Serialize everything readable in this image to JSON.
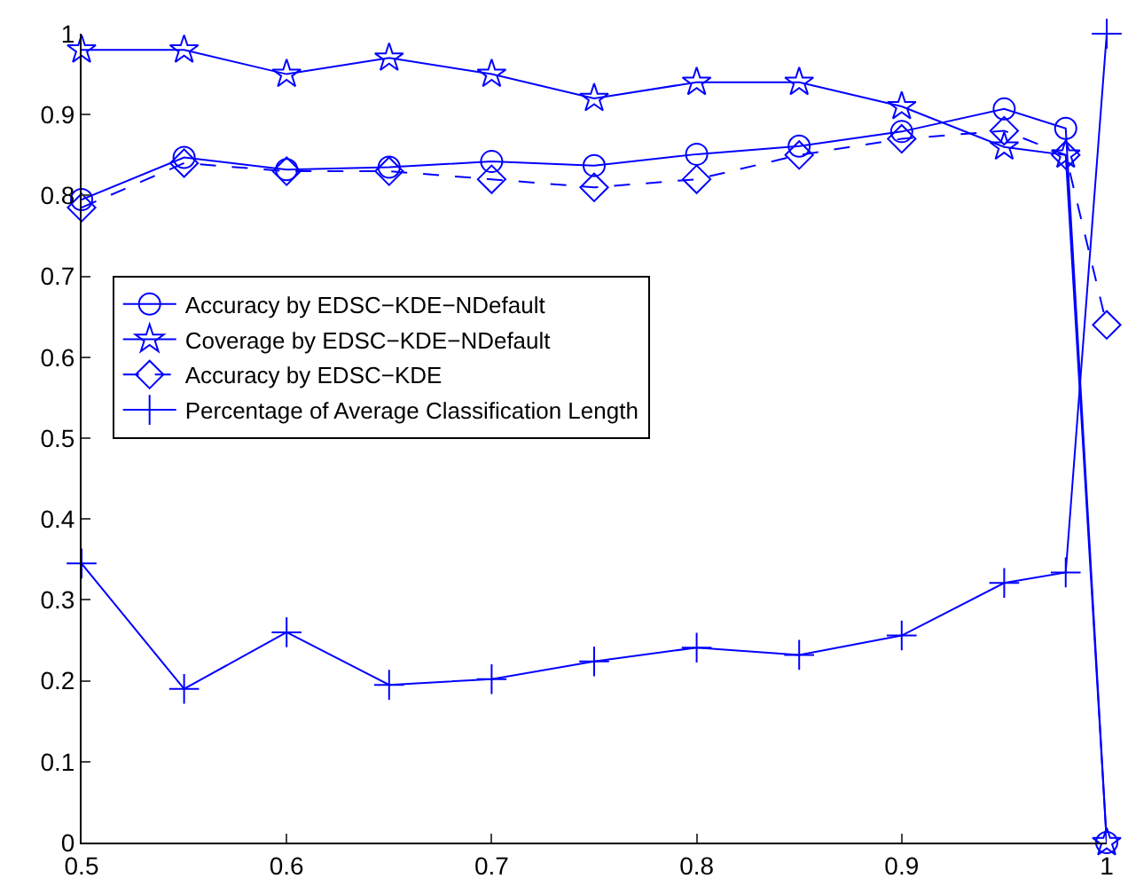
{
  "chart_data": {
    "type": "line",
    "x": [
      0.5,
      0.55,
      0.6,
      0.65,
      0.7,
      0.75,
      0.8,
      0.85,
      0.9,
      0.95,
      0.98,
      1
    ],
    "series": [
      {
        "name": "Accuracy by EDSC−KDE−NDefault",
        "color": "#0000ff",
        "marker": "circle",
        "line_style": "solid",
        "values": [
          0.795,
          0.847,
          0.832,
          0.835,
          0.842,
          0.837,
          0.851,
          0.861,
          0.879,
          0.907,
          0.883,
          0
        ]
      },
      {
        "name": "Coverage by EDSC−KDE−NDefault",
        "color": "#0000ff",
        "marker": "star",
        "line_style": "solid",
        "values": [
          0.98,
          0.98,
          0.95,
          0.97,
          0.95,
          0.92,
          0.94,
          0.94,
          0.91,
          0.86,
          0.85,
          0
        ]
      },
      {
        "name": "Accuracy by EDSC−KDE",
        "color": "#0000ff",
        "marker": "diamond",
        "line_style": "dashed",
        "values": [
          0.785,
          0.84,
          0.83,
          0.83,
          0.82,
          0.81,
          0.82,
          0.85,
          0.87,
          0.88,
          0.85,
          0.64
        ]
      },
      {
        "name": "Percentage of Average Classification Length",
        "color": "#0000ff",
        "marker": "cross",
        "line_style": "solid",
        "values": [
          0.345,
          0.19,
          0.26,
          0.195,
          0.202,
          0.224,
          0.241,
          0.232,
          0.256,
          0.321,
          0.334,
          1.0
        ]
      }
    ],
    "xlim": [
      0.5,
      1
    ],
    "xticks": [
      0.5,
      0.6,
      0.7,
      0.8,
      0.9,
      1
    ],
    "ylim": [
      0,
      1
    ],
    "yticks": [
      0,
      0.1,
      0.2,
      0.3,
      0.4,
      0.5,
      0.6,
      0.7,
      0.8,
      0.9,
      1
    ],
    "grid": false,
    "legend": "left"
  }
}
